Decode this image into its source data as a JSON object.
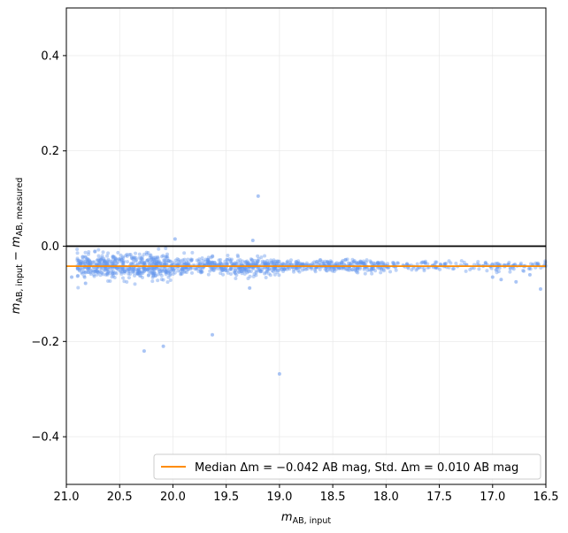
{
  "chart_data": {
    "type": "scatter",
    "title": "",
    "xlabel": "m_AB,input",
    "ylabel": "m_AB,input − m_AB,measured",
    "xlim": [
      21.0,
      16.5
    ],
    "ylim": [
      -0.5,
      0.5
    ],
    "x_inverted": true,
    "grid": true,
    "legend_position": "lower-right",
    "x_ticks": [
      "21.0",
      "20.5",
      "20.0",
      "19.5",
      "19.0",
      "18.5",
      "18.0",
      "17.5",
      "17.0",
      "16.5"
    ],
    "y_ticks": [
      "−0.4",
      "−0.2",
      "0.0",
      "0.2",
      "0.4"
    ],
    "reference_line": {
      "y": 0.0,
      "color": "#000000"
    },
    "median_line": {
      "y": -0.042,
      "color": "#ff8c00",
      "label": "Median Δm = −0.042 AB mag, Std. Δm = 0.010 AB mag"
    },
    "scatter_color": "#6495ed",
    "outliers": [
      {
        "x": 19.2,
        "y": 0.105
      },
      {
        "x": 19.25,
        "y": 0.012
      },
      {
        "x": 19.98,
        "y": 0.015
      },
      {
        "x": 20.27,
        "y": -0.22
      },
      {
        "x": 20.09,
        "y": -0.21
      },
      {
        "x": 19.63,
        "y": -0.186
      },
      {
        "x": 19.0,
        "y": -0.268
      },
      {
        "x": 19.28,
        "y": -0.088
      },
      {
        "x": 20.82,
        "y": -0.078
      },
      {
        "x": 20.95,
        "y": -0.065
      },
      {
        "x": 16.55,
        "y": -0.09
      },
      {
        "x": 16.78,
        "y": -0.075
      },
      {
        "x": 16.92,
        "y": -0.07
      },
      {
        "x": 17.0,
        "y": -0.065
      },
      {
        "x": 16.65,
        "y": -0.06
      }
    ],
    "distribution": {
      "segments": [
        {
          "x_from": 20.9,
          "x_to": 20.0,
          "n": 520,
          "median": -0.042,
          "spread": 0.013
        },
        {
          "x_from": 20.0,
          "x_to": 19.0,
          "n": 420,
          "median": -0.042,
          "spread": 0.009
        },
        {
          "x_from": 19.0,
          "x_to": 18.0,
          "n": 300,
          "median": -0.042,
          "spread": 0.006
        },
        {
          "x_from": 18.0,
          "x_to": 16.5,
          "n": 170,
          "median": -0.042,
          "spread": 0.005
        }
      ]
    }
  }
}
